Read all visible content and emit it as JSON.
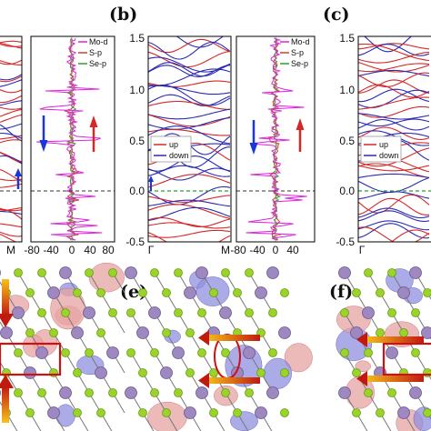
{
  "panel_labels": {
    "b": "(b)",
    "c": "(c)",
    "e": "(e)",
    "f": "(f)"
  },
  "colors": {
    "up": "#d62728",
    "down": "#2a2ab5",
    "mo_d": "#e020e0",
    "s_p": "#d04030",
    "se_p": "#2aa02a",
    "fermi": "#333333"
  },
  "axes": {
    "band_y_ticks": [
      "1.5",
      "1.0",
      "0.5",
      "0.0",
      "-0.5"
    ],
    "gamma": "Γ",
    "m": "M",
    "dos_x_ticks": [
      "-80",
      "-40",
      "0",
      "40",
      "80"
    ]
  },
  "legend_dos": [
    "Mo-d",
    "S-p",
    "Se-p"
  ],
  "legend_bands": [
    "up",
    "down"
  ],
  "chart_data": [
    {
      "type": "line",
      "panel": "(a) band structure, partially visible",
      "x": [
        "M"
      ],
      "ylim": [
        -0.5,
        1.5
      ],
      "series": [
        {
          "name": "up"
        },
        {
          "name": "down"
        }
      ]
    },
    {
      "type": "line",
      "panel": "(a) PDOS",
      "xlim": [
        -80,
        80
      ],
      "ylim": [
        -0.5,
        1.5
      ],
      "series": [
        {
          "name": "Mo-d"
        },
        {
          "name": "S-p"
        },
        {
          "name": "Se-p"
        }
      ]
    },
    {
      "type": "line",
      "panel": "(b) band structure",
      "x": [
        "Γ",
        "M"
      ],
      "ylim": [
        -0.5,
        1.5
      ],
      "y_ticks": [
        1.5,
        1.0,
        0.5,
        0.0,
        -0.5
      ],
      "series": [
        {
          "name": "up"
        },
        {
          "name": "down"
        }
      ]
    },
    {
      "type": "line",
      "panel": "(b) PDOS",
      "xlim": [
        -80,
        80
      ],
      "ylim": [
        -0.5,
        1.5
      ],
      "x_ticks": [
        -80,
        -40,
        0,
        40,
        80
      ],
      "series": [
        {
          "name": "Mo-d"
        },
        {
          "name": "S-p"
        },
        {
          "name": "Se-p"
        }
      ]
    },
    {
      "type": "line",
      "panel": "(c) band structure, partially visible",
      "x": [
        "Γ"
      ],
      "ylim": [
        -0.5,
        1.5
      ],
      "y_ticks": [
        1.5,
        1.0,
        0.5,
        0.0,
        -0.5
      ],
      "series": [
        {
          "name": "up"
        },
        {
          "name": "down"
        }
      ]
    }
  ]
}
